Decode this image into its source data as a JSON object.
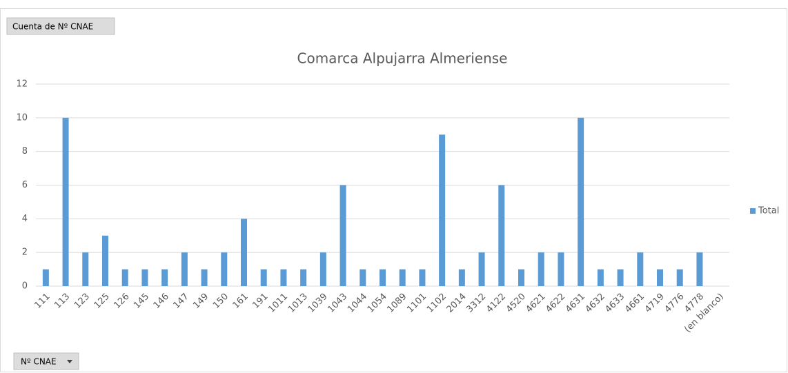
{
  "chart_data": {
    "type": "bar",
    "title": "Comarca Alpujarra Almeriense",
    "value_field_button": "Cuenta de  Nº CNAE",
    "axis_field_button": "Nº CNAE",
    "categories": [
      "111",
      "113",
      "123",
      "125",
      "126",
      "145",
      "146",
      "147",
      "149",
      "150",
      "161",
      "191",
      "1011",
      "1013",
      "1039",
      "1043",
      "1044",
      "1054",
      "1089",
      "1101",
      "1102",
      "2014",
      "3312",
      "4122",
      "4520",
      "4621",
      "4622",
      "4631",
      "4632",
      "4633",
      "4661",
      "4719",
      "4776",
      "4778",
      "(en blanco)"
    ],
    "series": [
      {
        "name": "Total",
        "color": "#5b9bd5",
        "values": [
          1,
          10,
          2,
          3,
          1,
          1,
          1,
          2,
          1,
          2,
          4,
          1,
          1,
          1,
          2,
          6,
          1,
          1,
          1,
          1,
          9,
          1,
          2,
          6,
          1,
          2,
          2,
          10,
          1,
          1,
          2,
          1,
          1,
          2,
          null
        ]
      }
    ],
    "ylim": [
      0,
      12
    ],
    "yticks": [
      0,
      2,
      4,
      6,
      8,
      10,
      12
    ],
    "grid": true,
    "legend": "right"
  }
}
